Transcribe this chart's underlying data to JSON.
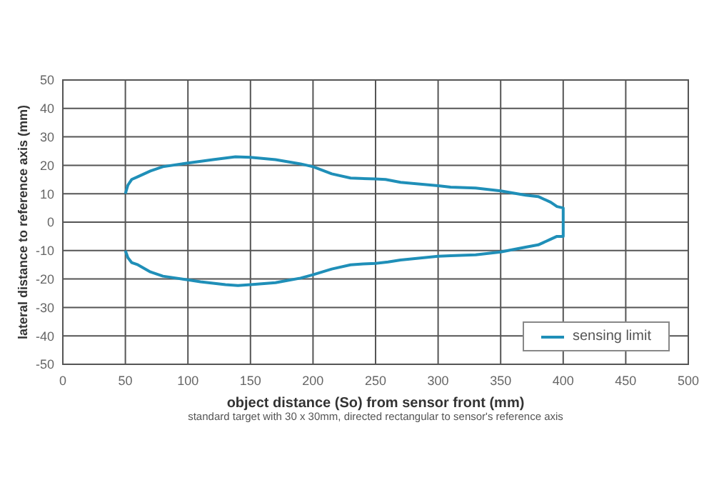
{
  "chart_data": {
    "type": "line",
    "xlabel": "object distance (So) from sensor front (mm)",
    "ylabel": "lateral  distance to reference axis (mm)",
    "annotations": [
      "standard target with 30 x 30mm, directed rectangular to sensor's reference axis"
    ],
    "series": [
      {
        "name": "sensing limit",
        "color": "#1f8fb8",
        "x": [
          50,
          52,
          55,
          60,
          70,
          80,
          100,
          120,
          138,
          150,
          170,
          190,
          200,
          215,
          230,
          250,
          258,
          270,
          300,
          310,
          330,
          350,
          370,
          380,
          390,
          395,
          400,
          400,
          395,
          390,
          380,
          370,
          350,
          330,
          310,
          300,
          270,
          260,
          250,
          240,
          230,
          215,
          200,
          190,
          180,
          170,
          150,
          140,
          130,
          110,
          100,
          80,
          70,
          60,
          55,
          52,
          50
        ],
        "values": [
          10,
          13,
          15,
          16,
          18,
          19.5,
          20.8,
          22,
          23,
          22.8,
          22,
          20.5,
          19.5,
          17,
          15.5,
          15.2,
          15,
          14,
          12.8,
          12.3,
          12,
          11,
          9.5,
          9,
          7,
          5.5,
          5,
          -5,
          -5,
          -6,
          -8,
          -8.8,
          -10.5,
          -11.5,
          -11.8,
          -12,
          -13.3,
          -14,
          -14.5,
          -14.7,
          -15,
          -16.5,
          -18.5,
          -19.7,
          -20.5,
          -21.3,
          -22,
          -22.3,
          -22,
          -21,
          -20.3,
          -19,
          -17.5,
          -15,
          -14.2,
          -12.5,
          -10
        ]
      }
    ],
    "xlim": [
      0,
      500
    ],
    "xticks": [
      0,
      50,
      100,
      150,
      200,
      250,
      300,
      350,
      400,
      450,
      500
    ],
    "ylim": [
      -50,
      50
    ],
    "yticks": [
      -50,
      -40,
      -30,
      -20,
      -10,
      0,
      10,
      20,
      30,
      40,
      50
    ],
    "grid": true,
    "legend": "bottom right",
    "marker": "none",
    "line_style": "solid"
  }
}
